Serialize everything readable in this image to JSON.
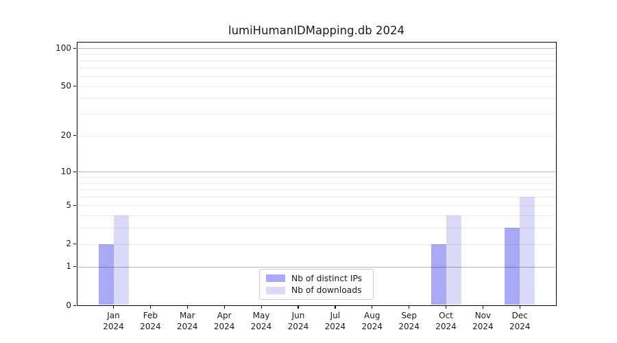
{
  "chart_data": {
    "type": "bar",
    "title": "lumiHumanIDMapping.db 2024",
    "months": [
      "Jan",
      "Feb",
      "Mar",
      "Apr",
      "May",
      "Jun",
      "Jul",
      "Aug",
      "Sep",
      "Oct",
      "Nov",
      "Dec"
    ],
    "year": "2024",
    "series": [
      {
        "name": "Nb of distinct IPs",
        "color": "#a9a9f5",
        "values": [
          2,
          0,
          0,
          0,
          0,
          0,
          0,
          0,
          0,
          2,
          0,
          3
        ]
      },
      {
        "name": "Nb of downloads",
        "color": "#dadaf8",
        "values": [
          4,
          0,
          0,
          0,
          0,
          0,
          0,
          0,
          0,
          4,
          0,
          6
        ]
      }
    ],
    "xlabel": "",
    "ylabel": "",
    "yscale": "log1p",
    "ylim": [
      0,
      112
    ],
    "yticks": [
      0,
      1,
      2,
      5,
      10,
      20,
      50,
      100
    ],
    "minor_gridlines": [
      2,
      3,
      4,
      5,
      6,
      7,
      8,
      9,
      20,
      30,
      40,
      50,
      60,
      70,
      80,
      90
    ],
    "major_gridlines": [
      1,
      10,
      100
    ],
    "grid": true,
    "legend_position": "bottom-center"
  }
}
